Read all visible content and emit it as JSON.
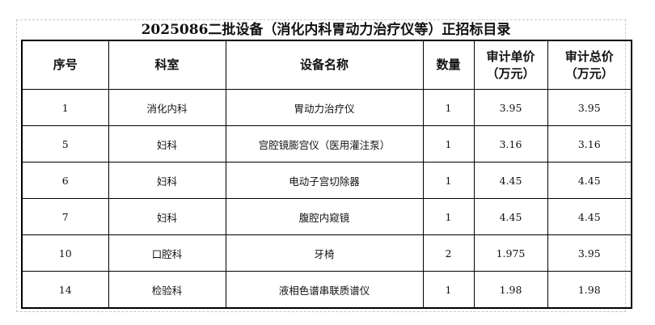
{
  "title": "2025086二批设备（消化内科胃动力治疗仪等）正招标目录",
  "headers": [
    "序号",
    "科室",
    "设备名称",
    "数量",
    "审计单价（万元）",
    "审计总价（万元）"
  ],
  "rows": [
    [
      "1",
      "消化内科",
      "胃动力治疗仪",
      "1",
      "3.95",
      "3.95"
    ],
    [
      "5",
      "妇科",
      "宫腔镜膨宫仪（医用灌注泵）",
      "1",
      "3.16",
      "3.16"
    ],
    [
      "6",
      "妇科",
      "电动子宫切除器",
      "1",
      "4.45",
      "4.45"
    ],
    [
      "7",
      "妇科",
      "腹腔内窥镜",
      "1",
      "4.45",
      "4.45"
    ],
    [
      "10",
      "口腔科",
      "牙椅",
      "2",
      "1.975",
      "3.95"
    ],
    [
      "14",
      "检验科",
      "液相色谱串联质谱仪",
      "1",
      "1.98",
      "1.98"
    ]
  ]
}
